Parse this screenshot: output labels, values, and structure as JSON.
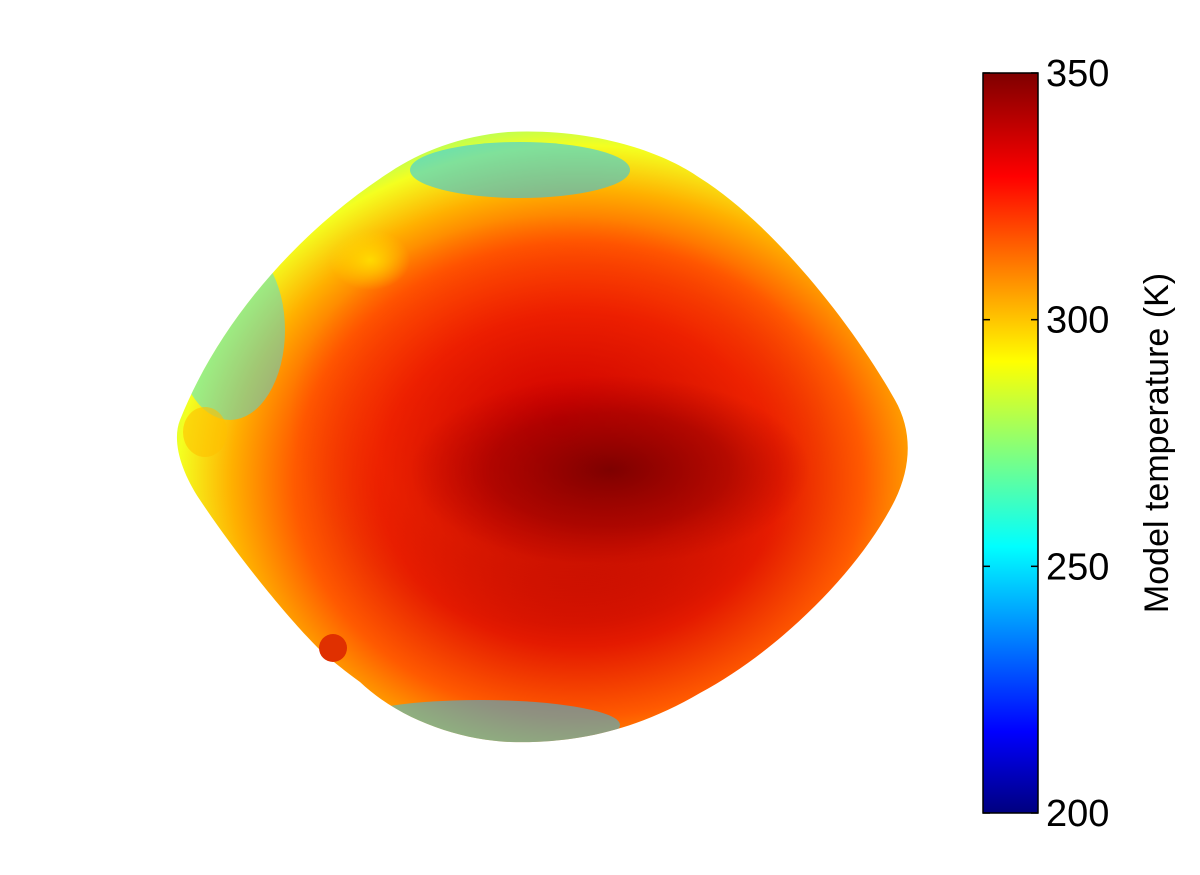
{
  "chart_data": {
    "type": "heatmap",
    "title": "",
    "colorbar": {
      "label": "Model temperature (K)",
      "colormap": "jet",
      "range": [
        200,
        350
      ],
      "ticks": [
        350,
        300,
        250,
        200
      ],
      "tick_labels": [
        "350",
        "300",
        "250",
        "200"
      ]
    }
  },
  "colors": {
    "jet_stops": [
      "#00007f",
      "#0000ff",
      "#007fff",
      "#00ffff",
      "#7fff7f",
      "#ffff00",
      "#ff7f00",
      "#ff0000",
      "#7f0000"
    ]
  }
}
